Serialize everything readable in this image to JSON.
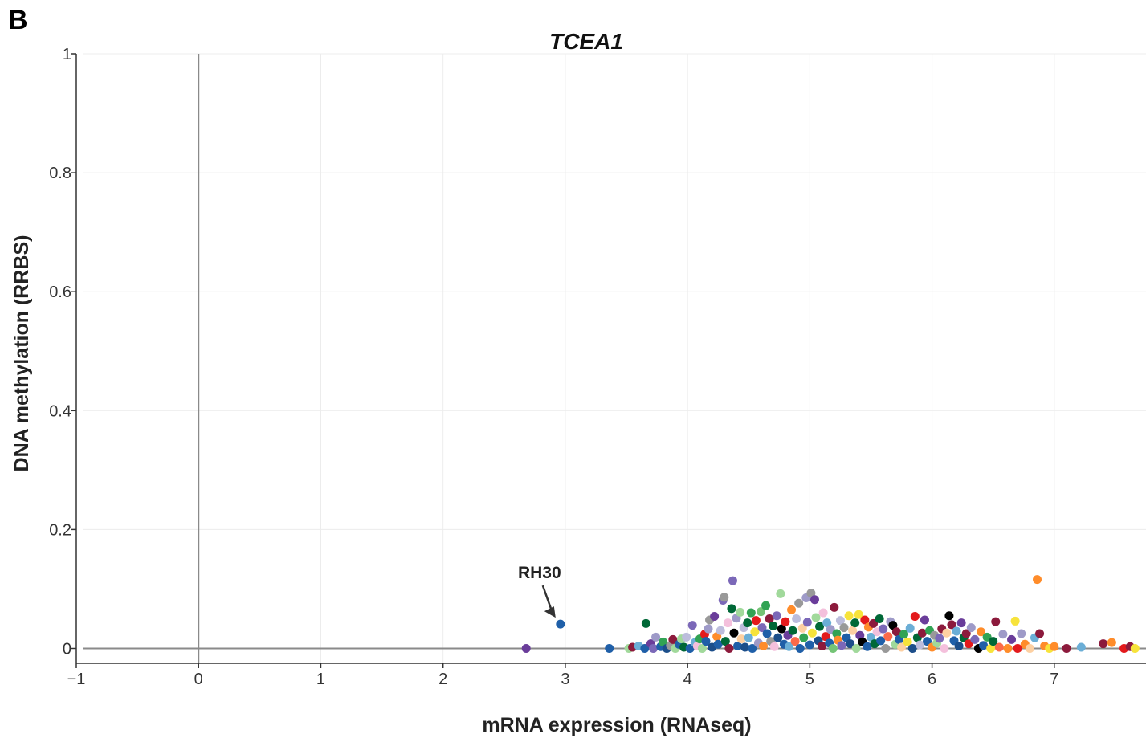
{
  "panel_label": "B",
  "chart_data": {
    "type": "scatter",
    "title": "TCEA1",
    "xlabel": "mRNA expression (RNAseq)",
    "ylabel": "DNA methylation (RRBS)",
    "xlim": [
      -1,
      7.75
    ],
    "ylim": [
      -0.025,
      1
    ],
    "xticks": [
      -1,
      0,
      1,
      2,
      3,
      4,
      5,
      6,
      7
    ],
    "xtick_labels": [
      "−1",
      "0",
      "1",
      "2",
      "3",
      "4",
      "5",
      "6",
      "7"
    ],
    "yticks": [
      0,
      0.2,
      0.4,
      0.6,
      0.8,
      1
    ],
    "ytick_labels": [
      "0",
      "0.2",
      "0.4",
      "0.6",
      "0.8",
      "1"
    ],
    "grid": true,
    "reference_lines": {
      "x": 0,
      "y": 0
    },
    "annotation": {
      "text": "RH30",
      "x": 2.96,
      "y": 0.041
    },
    "palette": [
      "#1f5fa8",
      "#7b68b8",
      "#006837",
      "#31a354",
      "#8c1a3c",
      "#6a3d9a",
      "#9e9ac8",
      "#a1d99b",
      "#ff8c2a",
      "#fdd0a2",
      "#e31a1c",
      "#999999",
      "#6baed6",
      "#000000",
      "#f7e33b",
      "#f4c0dc",
      "#bcbddc",
      "#74c476",
      "#fb6a4a",
      "#1c4e8a"
    ],
    "points": [
      [
        2.68,
        0.0,
        5
      ],
      [
        2.96,
        0.041,
        0
      ],
      [
        3.36,
        0.0,
        0
      ],
      [
        3.52,
        0.0,
        7
      ],
      [
        3.55,
        0.002,
        4
      ],
      [
        3.6,
        0.004,
        12
      ],
      [
        3.65,
        0.0,
        0
      ],
      [
        3.66,
        0.042,
        2
      ],
      [
        3.7,
        0.008,
        5
      ],
      [
        3.72,
        0.0,
        1
      ],
      [
        3.74,
        0.019,
        6
      ],
      [
        3.78,
        0.003,
        0
      ],
      [
        3.8,
        0.011,
        3
      ],
      [
        3.83,
        0.0,
        19
      ],
      [
        3.86,
        0.005,
        11
      ],
      [
        3.88,
        0.015,
        4
      ],
      [
        3.9,
        0.0,
        7
      ],
      [
        3.93,
        0.007,
        0
      ],
      [
        3.95,
        0.016,
        7
      ],
      [
        3.97,
        0.002,
        2
      ],
      [
        3.99,
        0.019,
        16
      ],
      [
        4.02,
        0.0,
        0
      ],
      [
        4.04,
        0.039,
        1
      ],
      [
        4.06,
        0.01,
        12
      ],
      [
        4.08,
        0.004,
        15
      ],
      [
        4.1,
        0.016,
        3
      ],
      [
        4.12,
        0.0,
        7
      ],
      [
        4.14,
        0.024,
        10
      ],
      [
        4.15,
        0.012,
        0
      ],
      [
        4.17,
        0.033,
        6
      ],
      [
        4.18,
        0.048,
        11
      ],
      [
        4.2,
        0.002,
        19
      ],
      [
        4.22,
        0.054,
        5
      ],
      [
        4.24,
        0.02,
        8
      ],
      [
        4.25,
        0.007,
        0
      ],
      [
        4.27,
        0.03,
        16
      ],
      [
        4.29,
        0.081,
        1
      ],
      [
        4.3,
        0.086,
        11
      ],
      [
        4.31,
        0.012,
        2
      ],
      [
        4.33,
        0.043,
        15
      ],
      [
        4.34,
        0.0,
        4
      ],
      [
        4.36,
        0.067,
        2
      ],
      [
        4.37,
        0.114,
        1
      ],
      [
        4.38,
        0.026,
        13
      ],
      [
        4.4,
        0.051,
        6
      ],
      [
        4.41,
        0.004,
        0
      ],
      [
        4.43,
        0.061,
        7
      ],
      [
        4.44,
        0.016,
        9
      ],
      [
        4.46,
        0.035,
        16
      ],
      [
        4.47,
        0.002,
        19
      ],
      [
        4.49,
        0.043,
        2
      ],
      [
        4.5,
        0.018,
        12
      ],
      [
        4.52,
        0.06,
        3
      ],
      [
        4.53,
        0.0,
        0
      ],
      [
        4.55,
        0.028,
        14
      ],
      [
        4.56,
        0.047,
        10
      ],
      [
        4.58,
        0.009,
        6
      ],
      [
        4.6,
        0.062,
        17
      ],
      [
        4.61,
        0.035,
        1
      ],
      [
        4.62,
        0.004,
        8
      ],
      [
        4.64,
        0.072,
        3
      ],
      [
        4.65,
        0.025,
        0
      ],
      [
        4.67,
        0.05,
        4
      ],
      [
        4.68,
        0.012,
        11
      ],
      [
        4.7,
        0.038,
        2
      ],
      [
        4.71,
        0.003,
        15
      ],
      [
        4.73,
        0.055,
        1
      ],
      [
        4.74,
        0.018,
        19
      ],
      [
        4.76,
        0.092,
        7
      ],
      [
        4.77,
        0.033,
        13
      ],
      [
        4.79,
        0.007,
        0
      ],
      [
        4.8,
        0.045,
        10
      ],
      [
        4.82,
        0.022,
        5
      ],
      [
        4.83,
        0.003,
        12
      ],
      [
        4.85,
        0.065,
        8
      ],
      [
        4.86,
        0.03,
        2
      ],
      [
        4.88,
        0.012,
        18
      ],
      [
        4.89,
        0.05,
        16
      ],
      [
        4.91,
        0.076,
        11
      ],
      [
        4.92,
        0.0,
        0
      ],
      [
        4.94,
        0.034,
        9
      ],
      [
        4.95,
        0.018,
        3
      ],
      [
        4.97,
        0.085,
        6
      ],
      [
        4.98,
        0.044,
        1
      ],
      [
        5.0,
        0.006,
        0
      ],
      [
        5.01,
        0.093,
        11
      ],
      [
        5.02,
        0.026,
        14
      ],
      [
        5.04,
        0.082,
        5
      ],
      [
        5.05,
        0.052,
        7
      ],
      [
        5.07,
        0.013,
        19
      ],
      [
        5.08,
        0.037,
        2
      ],
      [
        5.1,
        0.004,
        4
      ],
      [
        5.11,
        0.06,
        15
      ],
      [
        5.13,
        0.02,
        10
      ],
      [
        5.14,
        0.043,
        12
      ],
      [
        5.16,
        0.009,
        0
      ],
      [
        5.17,
        0.032,
        6
      ],
      [
        5.19,
        0.0,
        17
      ],
      [
        5.2,
        0.069,
        4
      ],
      [
        5.22,
        0.025,
        3
      ],
      [
        5.23,
        0.014,
        8
      ],
      [
        5.25,
        0.047,
        16
      ],
      [
        5.26,
        0.005,
        1
      ],
      [
        5.28,
        0.035,
        11
      ],
      [
        5.3,
        0.018,
        0
      ],
      [
        5.32,
        0.055,
        14
      ],
      [
        5.33,
        0.008,
        19
      ],
      [
        5.35,
        0.03,
        9
      ],
      [
        5.37,
        0.043,
        2
      ],
      [
        5.38,
        0.0,
        7
      ],
      [
        5.4,
        0.057,
        14
      ],
      [
        5.41,
        0.022,
        5
      ],
      [
        5.43,
        0.011,
        13
      ],
      [
        5.45,
        0.048,
        10
      ],
      [
        5.47,
        0.003,
        0
      ],
      [
        5.48,
        0.036,
        8
      ],
      [
        5.5,
        0.019,
        12
      ],
      [
        5.52,
        0.042,
        4
      ],
      [
        5.53,
        0.008,
        2
      ],
      [
        5.55,
        0.028,
        15
      ],
      [
        5.57,
        0.05,
        2
      ],
      [
        5.58,
        0.013,
        0
      ],
      [
        5.6,
        0.033,
        1
      ],
      [
        5.62,
        0.0,
        11
      ],
      [
        5.64,
        0.02,
        18
      ],
      [
        5.66,
        0.045,
        6
      ],
      [
        5.68,
        0.039,
        13
      ],
      [
        5.7,
        0.007,
        7
      ],
      [
        5.71,
        0.028,
        4
      ],
      [
        5.73,
        0.015,
        0
      ],
      [
        5.75,
        0.002,
        9
      ],
      [
        5.77,
        0.024,
        3
      ],
      [
        5.8,
        0.011,
        14
      ],
      [
        5.82,
        0.034,
        12
      ],
      [
        5.84,
        0.0,
        19
      ],
      [
        5.86,
        0.054,
        10
      ],
      [
        5.88,
        0.018,
        2
      ],
      [
        5.9,
        0.006,
        16
      ],
      [
        5.92,
        0.026,
        4
      ],
      [
        5.94,
        0.048,
        5
      ],
      [
        5.96,
        0.012,
        0
      ],
      [
        5.98,
        0.03,
        3
      ],
      [
        6.0,
        0.002,
        8
      ],
      [
        6.02,
        0.022,
        11
      ],
      [
        6.04,
        0.009,
        7
      ],
      [
        6.06,
        0.017,
        1
      ],
      [
        6.08,
        0.033,
        4
      ],
      [
        6.1,
        0.0,
        15
      ],
      [
        6.12,
        0.026,
        9
      ],
      [
        6.14,
        0.055,
        13
      ],
      [
        6.16,
        0.04,
        4
      ],
      [
        6.18,
        0.013,
        0
      ],
      [
        6.2,
        0.029,
        12
      ],
      [
        6.22,
        0.004,
        19
      ],
      [
        6.24,
        0.043,
        5
      ],
      [
        6.26,
        0.018,
        2
      ],
      [
        6.28,
        0.025,
        4
      ],
      [
        6.3,
        0.008,
        10
      ],
      [
        6.32,
        0.035,
        6
      ],
      [
        6.35,
        0.015,
        1
      ],
      [
        6.38,
        0.0,
        13
      ],
      [
        6.4,
        0.028,
        8
      ],
      [
        6.42,
        0.005,
        0
      ],
      [
        6.45,
        0.019,
        3
      ],
      [
        6.48,
        0.0,
        14
      ],
      [
        6.5,
        0.012,
        2
      ],
      [
        6.52,
        0.045,
        4
      ],
      [
        6.55,
        0.002,
        18
      ],
      [
        6.58,
        0.024,
        6
      ],
      [
        6.62,
        0.0,
        8
      ],
      [
        6.65,
        0.015,
        5
      ],
      [
        6.68,
        0.046,
        14
      ],
      [
        6.7,
        0.0,
        10
      ],
      [
        6.73,
        0.025,
        6
      ],
      [
        6.76,
        0.007,
        8
      ],
      [
        6.8,
        0.0,
        9
      ],
      [
        6.84,
        0.018,
        12
      ],
      [
        6.86,
        0.116,
        8
      ],
      [
        6.88,
        0.025,
        4
      ],
      [
        6.92,
        0.004,
        8
      ],
      [
        6.96,
        0.0,
        14
      ],
      [
        7.0,
        0.003,
        8
      ],
      [
        7.1,
        0.0,
        4
      ],
      [
        7.22,
        0.002,
        12
      ],
      [
        7.4,
        0.008,
        4
      ],
      [
        7.47,
        0.01,
        8
      ],
      [
        7.57,
        0.0,
        10
      ],
      [
        7.62,
        0.003,
        4
      ],
      [
        7.66,
        0.0,
        14
      ]
    ]
  }
}
